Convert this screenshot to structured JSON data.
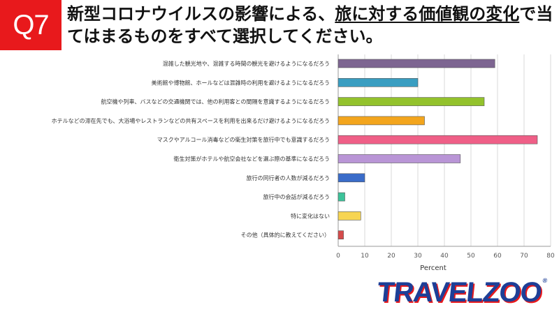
{
  "badge": "Q7",
  "title": {
    "part1": "新型コロナウイルスの影響による、",
    "part2": "旅に対する価値観の変化",
    "part3": "で当てはまるものをすべて選択してください。"
  },
  "logo": {
    "text": "TRAVELZOO",
    "mark": "®"
  },
  "chart_data": {
    "type": "bar",
    "orientation": "horizontal",
    "xlabel": "Percent",
    "xlim": [
      0,
      80
    ],
    "xticks": [
      0,
      10,
      20,
      30,
      40,
      50,
      60,
      70,
      80
    ],
    "grid": true,
    "categories": [
      "混雑した観光地や、混雑する時間の観光を避けるようになるだろう",
      "美術館や博物館、ホールなどは混雑時の利用を避けるようになるだろう",
      "航空機や列車、バスなどの交通機関では、他の利用客との間隔を意識するようになるだろう",
      "ホテルなどの滞在先でも、大浴場やレストランなどの共有スペースを利用を出来るだけ避けるようになるだろう",
      "マスクやアルコール消毒などの衛生対策を旅行中でも意識するだろう",
      "衛生対策がホテルや航空会社などを選ぶ際の基準になるだろう",
      "旅行の同行者の人数が減るだろう",
      "旅行中の会話が減るだろう",
      "特に変化はない",
      "その他（具体的に教えてください）"
    ],
    "values": [
      59,
      30,
      55,
      32.5,
      75,
      46,
      10,
      2.5,
      8.5,
      2
    ],
    "colors": [
      "#7d6591",
      "#3a9ec1",
      "#93c22c",
      "#f3a51d",
      "#ef5f87",
      "#b995d6",
      "#3a6cc9",
      "#3cc39a",
      "#f7d552",
      "#d54b4b"
    ]
  }
}
